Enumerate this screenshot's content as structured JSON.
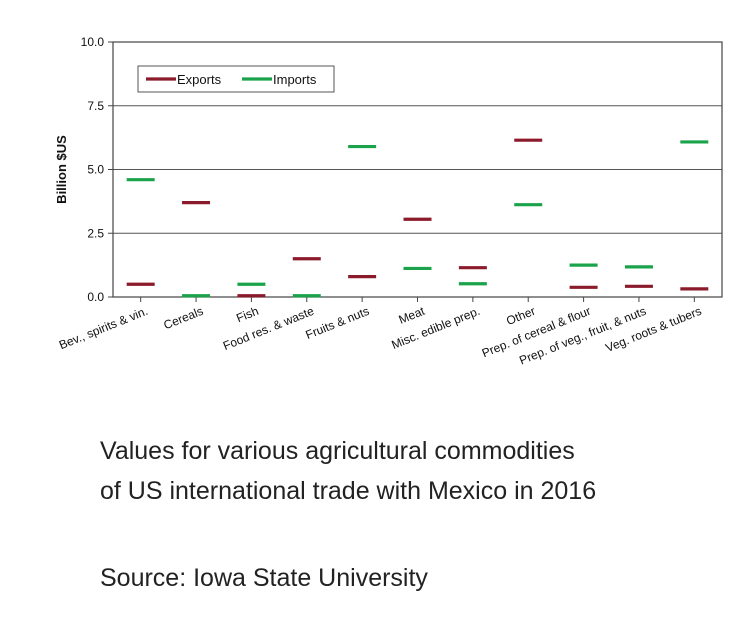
{
  "caption": {
    "line1": "Values for various agricultural commodities",
    "line2": "of US international trade with Mexico in 2016",
    "source": "Source: Iowa State University"
  },
  "chart_data": {
    "type": "scatter",
    "marker": "horizontal-dash",
    "ylabel": "Billion $US",
    "ylim": [
      0,
      10
    ],
    "yticks": [
      "0.0",
      "2.5",
      "5.0",
      "7.5",
      "10.0"
    ],
    "grid": "horizontal",
    "legend_position": "top-left",
    "categories": [
      "Bev., spirits & vin.",
      "Cereals",
      "Fish",
      "Food res. & waste",
      "Fruits & nuts",
      "Meat",
      "Misc. edible prep.",
      "Other",
      "Prep. of cereal & flour",
      "Prep. of veg., fruit, & nuts",
      "Veg. roots & tubers"
    ],
    "series": [
      {
        "name": "Exports",
        "color": "#8b1a2b",
        "values": [
          0.5,
          3.7,
          0.05,
          1.5,
          0.8,
          3.05,
          1.15,
          6.15,
          0.38,
          0.42,
          0.32
        ]
      },
      {
        "name": "Imports",
        "color": "#1aa34a",
        "values": [
          4.6,
          0.05,
          0.5,
          0.05,
          5.9,
          1.12,
          0.52,
          3.62,
          1.25,
          1.18,
          6.08
        ]
      }
    ]
  }
}
